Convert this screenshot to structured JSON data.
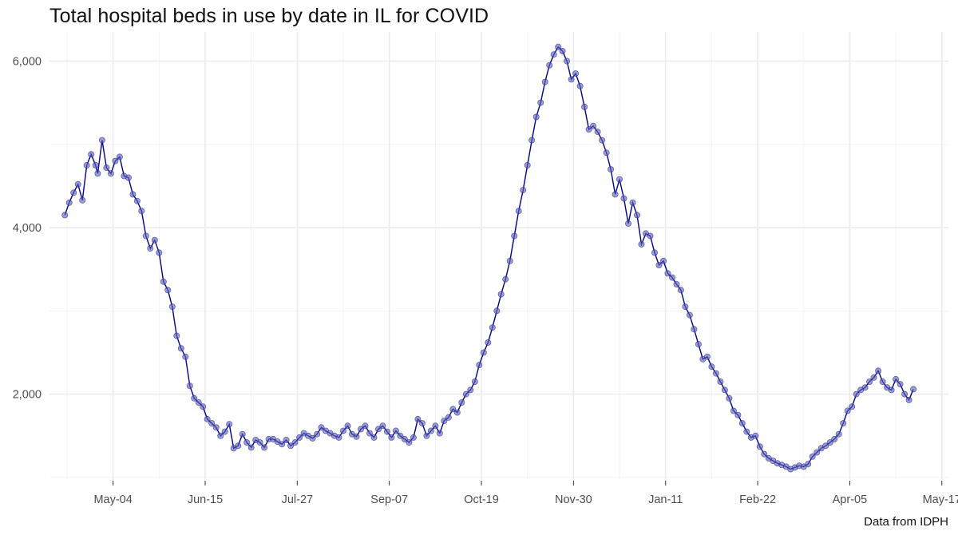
{
  "chart_data": {
    "type": "line",
    "title": "Total hospital beds in use by date in IL for COVID",
    "caption": "Data from IDPH",
    "xlabel": "",
    "ylabel": "",
    "x_ticks": [
      {
        "date": "2020-05-04",
        "label": "May-04"
      },
      {
        "date": "2020-06-15",
        "label": "Jun-15"
      },
      {
        "date": "2020-07-27",
        "label": "Jul-27"
      },
      {
        "date": "2020-09-07",
        "label": "Sep-07"
      },
      {
        "date": "2020-10-19",
        "label": "Oct-19"
      },
      {
        "date": "2020-11-30",
        "label": "Nov-30"
      },
      {
        "date": "2021-01-11",
        "label": "Jan-11"
      },
      {
        "date": "2021-02-22",
        "label": "Feb-22"
      },
      {
        "date": "2021-04-05",
        "label": "Apr-05"
      },
      {
        "date": "2021-05-17",
        "label": "May-17"
      }
    ],
    "y_ticks": [
      {
        "value": 2000,
        "label": "2,000"
      },
      {
        "value": 4000,
        "label": "4,000"
      },
      {
        "value": 6000,
        "label": "6,000"
      }
    ],
    "xlim": [
      "2020-04-05",
      "2021-05-20"
    ],
    "ylim": [
      980,
      6350
    ],
    "grid": true,
    "line_color": "#00008b",
    "point_color": "#5b5fb8",
    "series": [
      {
        "points": [
          [
            "2020-04-12",
            4150
          ],
          [
            "2020-04-14",
            4300
          ],
          [
            "2020-04-16",
            4420
          ],
          [
            "2020-04-18",
            4520
          ],
          [
            "2020-04-20",
            4330
          ],
          [
            "2020-04-22",
            4750
          ],
          [
            "2020-04-24",
            4880
          ],
          [
            "2020-04-26",
            4750
          ],
          [
            "2020-04-27",
            4650
          ],
          [
            "2020-04-29",
            5050
          ],
          [
            "2020-05-01",
            4720
          ],
          [
            "2020-05-03",
            4650
          ],
          [
            "2020-05-05",
            4800
          ],
          [
            "2020-05-07",
            4850
          ],
          [
            "2020-05-09",
            4620
          ],
          [
            "2020-05-11",
            4600
          ],
          [
            "2020-05-13",
            4400
          ],
          [
            "2020-05-15",
            4320
          ],
          [
            "2020-05-17",
            4200
          ],
          [
            "2020-05-19",
            3900
          ],
          [
            "2020-05-21",
            3750
          ],
          [
            "2020-05-23",
            3850
          ],
          [
            "2020-05-25",
            3700
          ],
          [
            "2020-05-27",
            3350
          ],
          [
            "2020-05-29",
            3250
          ],
          [
            "2020-05-31",
            3050
          ],
          [
            "2020-06-02",
            2700
          ],
          [
            "2020-06-04",
            2550
          ],
          [
            "2020-06-06",
            2450
          ],
          [
            "2020-06-08",
            2100
          ],
          [
            "2020-06-10",
            1950
          ],
          [
            "2020-06-12",
            1900
          ],
          [
            "2020-06-14",
            1850
          ],
          [
            "2020-06-16",
            1700
          ],
          [
            "2020-06-18",
            1650
          ],
          [
            "2020-06-20",
            1600
          ],
          [
            "2020-06-22",
            1500
          ],
          [
            "2020-06-24",
            1550
          ],
          [
            "2020-06-26",
            1640
          ],
          [
            "2020-06-28",
            1350
          ],
          [
            "2020-06-30",
            1380
          ],
          [
            "2020-07-02",
            1520
          ],
          [
            "2020-07-04",
            1420
          ],
          [
            "2020-07-06",
            1360
          ],
          [
            "2020-07-08",
            1450
          ],
          [
            "2020-07-10",
            1420
          ],
          [
            "2020-07-12",
            1360
          ],
          [
            "2020-07-14",
            1460
          ],
          [
            "2020-07-16",
            1460
          ],
          [
            "2020-07-18",
            1430
          ],
          [
            "2020-07-20",
            1400
          ],
          [
            "2020-07-22",
            1450
          ],
          [
            "2020-07-24",
            1380
          ],
          [
            "2020-07-26",
            1420
          ],
          [
            "2020-07-28",
            1480
          ],
          [
            "2020-07-30",
            1530
          ],
          [
            "2020-08-01",
            1500
          ],
          [
            "2020-08-03",
            1470
          ],
          [
            "2020-08-05",
            1520
          ],
          [
            "2020-08-07",
            1600
          ],
          [
            "2020-08-09",
            1560
          ],
          [
            "2020-08-11",
            1530
          ],
          [
            "2020-08-13",
            1500
          ],
          [
            "2020-08-15",
            1480
          ],
          [
            "2020-08-17",
            1560
          ],
          [
            "2020-08-19",
            1620
          ],
          [
            "2020-08-21",
            1520
          ],
          [
            "2020-08-23",
            1490
          ],
          [
            "2020-08-25",
            1580
          ],
          [
            "2020-08-27",
            1620
          ],
          [
            "2020-08-29",
            1530
          ],
          [
            "2020-08-31",
            1480
          ],
          [
            "2020-09-02",
            1580
          ],
          [
            "2020-09-04",
            1620
          ],
          [
            "2020-09-06",
            1550
          ],
          [
            "2020-09-08",
            1480
          ],
          [
            "2020-09-10",
            1560
          ],
          [
            "2020-09-12",
            1500
          ],
          [
            "2020-09-14",
            1460
          ],
          [
            "2020-09-16",
            1420
          ],
          [
            "2020-09-18",
            1480
          ],
          [
            "2020-09-20",
            1700
          ],
          [
            "2020-09-22",
            1650
          ],
          [
            "2020-09-24",
            1500
          ],
          [
            "2020-09-26",
            1560
          ],
          [
            "2020-09-28",
            1620
          ],
          [
            "2020-09-30",
            1530
          ],
          [
            "2020-10-02",
            1680
          ],
          [
            "2020-10-04",
            1720
          ],
          [
            "2020-10-06",
            1820
          ],
          [
            "2020-10-08",
            1780
          ],
          [
            "2020-10-10",
            1900
          ],
          [
            "2020-10-12",
            2000
          ],
          [
            "2020-10-14",
            2050
          ],
          [
            "2020-10-16",
            2150
          ],
          [
            "2020-10-18",
            2350
          ],
          [
            "2020-10-20",
            2500
          ],
          [
            "2020-10-22",
            2620
          ],
          [
            "2020-10-24",
            2800
          ],
          [
            "2020-10-26",
            3000
          ],
          [
            "2020-10-28",
            3200
          ],
          [
            "2020-10-30",
            3380
          ],
          [
            "2020-11-01",
            3600
          ],
          [
            "2020-11-03",
            3900
          ],
          [
            "2020-11-05",
            4200
          ],
          [
            "2020-11-07",
            4450
          ],
          [
            "2020-11-09",
            4750
          ],
          [
            "2020-11-11",
            5050
          ],
          [
            "2020-11-13",
            5330
          ],
          [
            "2020-11-15",
            5500
          ],
          [
            "2020-11-17",
            5750
          ],
          [
            "2020-11-19",
            5950
          ],
          [
            "2020-11-21",
            6080
          ],
          [
            "2020-11-23",
            6170
          ],
          [
            "2020-11-25",
            6120
          ],
          [
            "2020-11-27",
            6000
          ],
          [
            "2020-11-29",
            5780
          ],
          [
            "2020-12-01",
            5850
          ],
          [
            "2020-12-03",
            5700
          ],
          [
            "2020-12-05",
            5450
          ],
          [
            "2020-12-07",
            5180
          ],
          [
            "2020-12-09",
            5220
          ],
          [
            "2020-12-11",
            5150
          ],
          [
            "2020-12-13",
            5050
          ],
          [
            "2020-12-15",
            4900
          ],
          [
            "2020-12-17",
            4700
          ],
          [
            "2020-12-19",
            4400
          ],
          [
            "2020-12-21",
            4580
          ],
          [
            "2020-12-23",
            4350
          ],
          [
            "2020-12-25",
            4050
          ],
          [
            "2020-12-27",
            4300
          ],
          [
            "2020-12-29",
            4150
          ],
          [
            "2020-12-31",
            3800
          ],
          [
            "2021-01-02",
            3930
          ],
          [
            "2021-01-04",
            3900
          ],
          [
            "2021-01-06",
            3700
          ],
          [
            "2021-01-08",
            3550
          ],
          [
            "2021-01-10",
            3600
          ],
          [
            "2021-01-12",
            3450
          ],
          [
            "2021-01-14",
            3400
          ],
          [
            "2021-01-16",
            3320
          ],
          [
            "2021-01-18",
            3250
          ],
          [
            "2021-01-20",
            3050
          ],
          [
            "2021-01-22",
            2950
          ],
          [
            "2021-01-24",
            2780
          ],
          [
            "2021-01-26",
            2600
          ],
          [
            "2021-01-28",
            2420
          ],
          [
            "2021-01-30",
            2450
          ],
          [
            "2021-02-01",
            2330
          ],
          [
            "2021-02-03",
            2250
          ],
          [
            "2021-02-05",
            2150
          ],
          [
            "2021-02-07",
            2050
          ],
          [
            "2021-02-09",
            1950
          ],
          [
            "2021-02-11",
            1800
          ],
          [
            "2021-02-13",
            1750
          ],
          [
            "2021-02-15",
            1650
          ],
          [
            "2021-02-17",
            1550
          ],
          [
            "2021-02-19",
            1480
          ],
          [
            "2021-02-21",
            1500
          ],
          [
            "2021-02-23",
            1370
          ],
          [
            "2021-02-25",
            1280
          ],
          [
            "2021-02-27",
            1230
          ],
          [
            "2021-03-01",
            1200
          ],
          [
            "2021-03-03",
            1170
          ],
          [
            "2021-03-05",
            1150
          ],
          [
            "2021-03-07",
            1130
          ],
          [
            "2021-03-09",
            1100
          ],
          [
            "2021-03-11",
            1120
          ],
          [
            "2021-03-13",
            1140
          ],
          [
            "2021-03-15",
            1130
          ],
          [
            "2021-03-17",
            1160
          ],
          [
            "2021-03-19",
            1250
          ],
          [
            "2021-03-21",
            1300
          ],
          [
            "2021-03-23",
            1350
          ],
          [
            "2021-03-25",
            1380
          ],
          [
            "2021-03-27",
            1420
          ],
          [
            "2021-03-29",
            1460
          ],
          [
            "2021-03-31",
            1520
          ],
          [
            "2021-04-02",
            1650
          ],
          [
            "2021-04-04",
            1800
          ],
          [
            "2021-04-06",
            1850
          ],
          [
            "2021-04-08",
            2000
          ],
          [
            "2021-04-10",
            2050
          ],
          [
            "2021-04-12",
            2080
          ],
          [
            "2021-04-14",
            2150
          ],
          [
            "2021-04-16",
            2200
          ],
          [
            "2021-04-18",
            2280
          ],
          [
            "2021-04-20",
            2150
          ],
          [
            "2021-04-22",
            2080
          ],
          [
            "2021-04-24",
            2050
          ],
          [
            "2021-04-26",
            2180
          ],
          [
            "2021-04-28",
            2120
          ],
          [
            "2021-04-30",
            2000
          ],
          [
            "2021-05-02",
            1930
          ],
          [
            "2021-05-04",
            2060
          ]
        ]
      }
    ]
  }
}
